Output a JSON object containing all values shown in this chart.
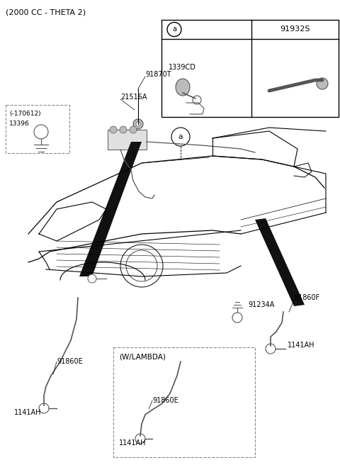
{
  "title": "(2000 CC - THETA 2)",
  "bg_color": "#ffffff",
  "line_color": "#000000",
  "gray_color": "#777777",
  "light_gray": "#bbbbbb",
  "dark_gray": "#555555",
  "dashed_box_color": "#888888",
  "parts_labels": {
    "top_label1": "91870T",
    "top_label2": "21516A",
    "dashed_box_label1": "(-170612)",
    "dashed_box_label2": "13396",
    "callout_a": "a",
    "table_part1": "1339CD",
    "table_part2": "91932S",
    "bottom_left_cable": "91860E",
    "bottom_left_term": "1141AH",
    "right_cable": "91860F",
    "right_term": "1141AH",
    "right_mid": "91234A",
    "wlambda_box": "(W/LAMBDA)",
    "wlambda_cable": "91860E",
    "wlambda_term": "1141AH"
  }
}
